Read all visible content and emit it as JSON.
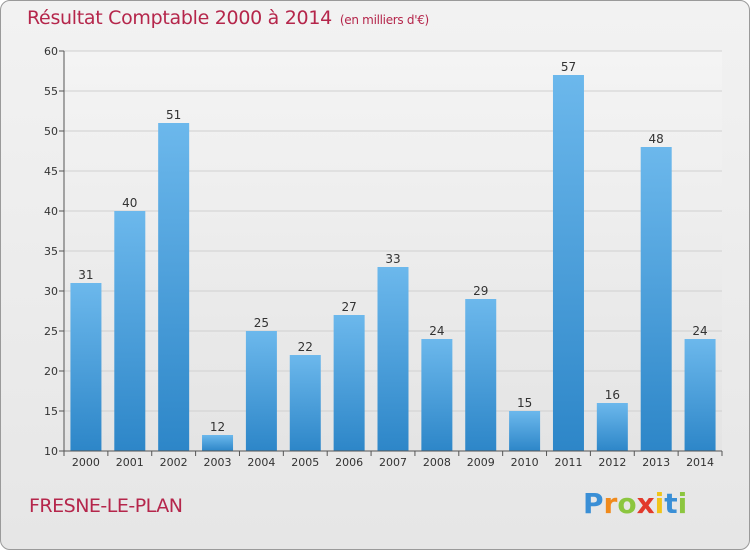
{
  "title": "Résultat Comptable 2000 à 2014",
  "unit": "(en milliers d'€)",
  "place": "FRESNE-LE-PLAN",
  "logo": {
    "p": "P",
    "r": "r",
    "o": "o",
    "x": "x",
    "i1": "i",
    "t": "t",
    "i2": "i",
    "colors": {
      "p": "#3a8fd6",
      "r": "#f08a1c",
      "o": "#8cc63f",
      "x": "#e23a2b",
      "i1": "#f0c419",
      "t": "#3a8fd6",
      "i2": "#8cc63f"
    }
  },
  "chart_data": {
    "type": "bar",
    "title": "Résultat Comptable 2000 à 2014",
    "ylabel": "en milliers d'€",
    "categories": [
      "2000",
      "2001",
      "2002",
      "2003",
      "2004",
      "2005",
      "2006",
      "2007",
      "2008",
      "2009",
      "2010",
      "2011",
      "2012",
      "2013",
      "2014"
    ],
    "values": [
      31,
      40,
      51,
      12,
      25,
      22,
      27,
      33,
      24,
      29,
      15,
      57,
      16,
      48,
      24
    ],
    "ylim": [
      10,
      60
    ],
    "yticks": [
      10,
      15,
      20,
      25,
      30,
      35,
      40,
      45,
      50,
      55,
      60
    ],
    "grid": true,
    "bar_color_top": "#6cb8ec",
    "bar_color_bottom": "#2d86c8"
  }
}
